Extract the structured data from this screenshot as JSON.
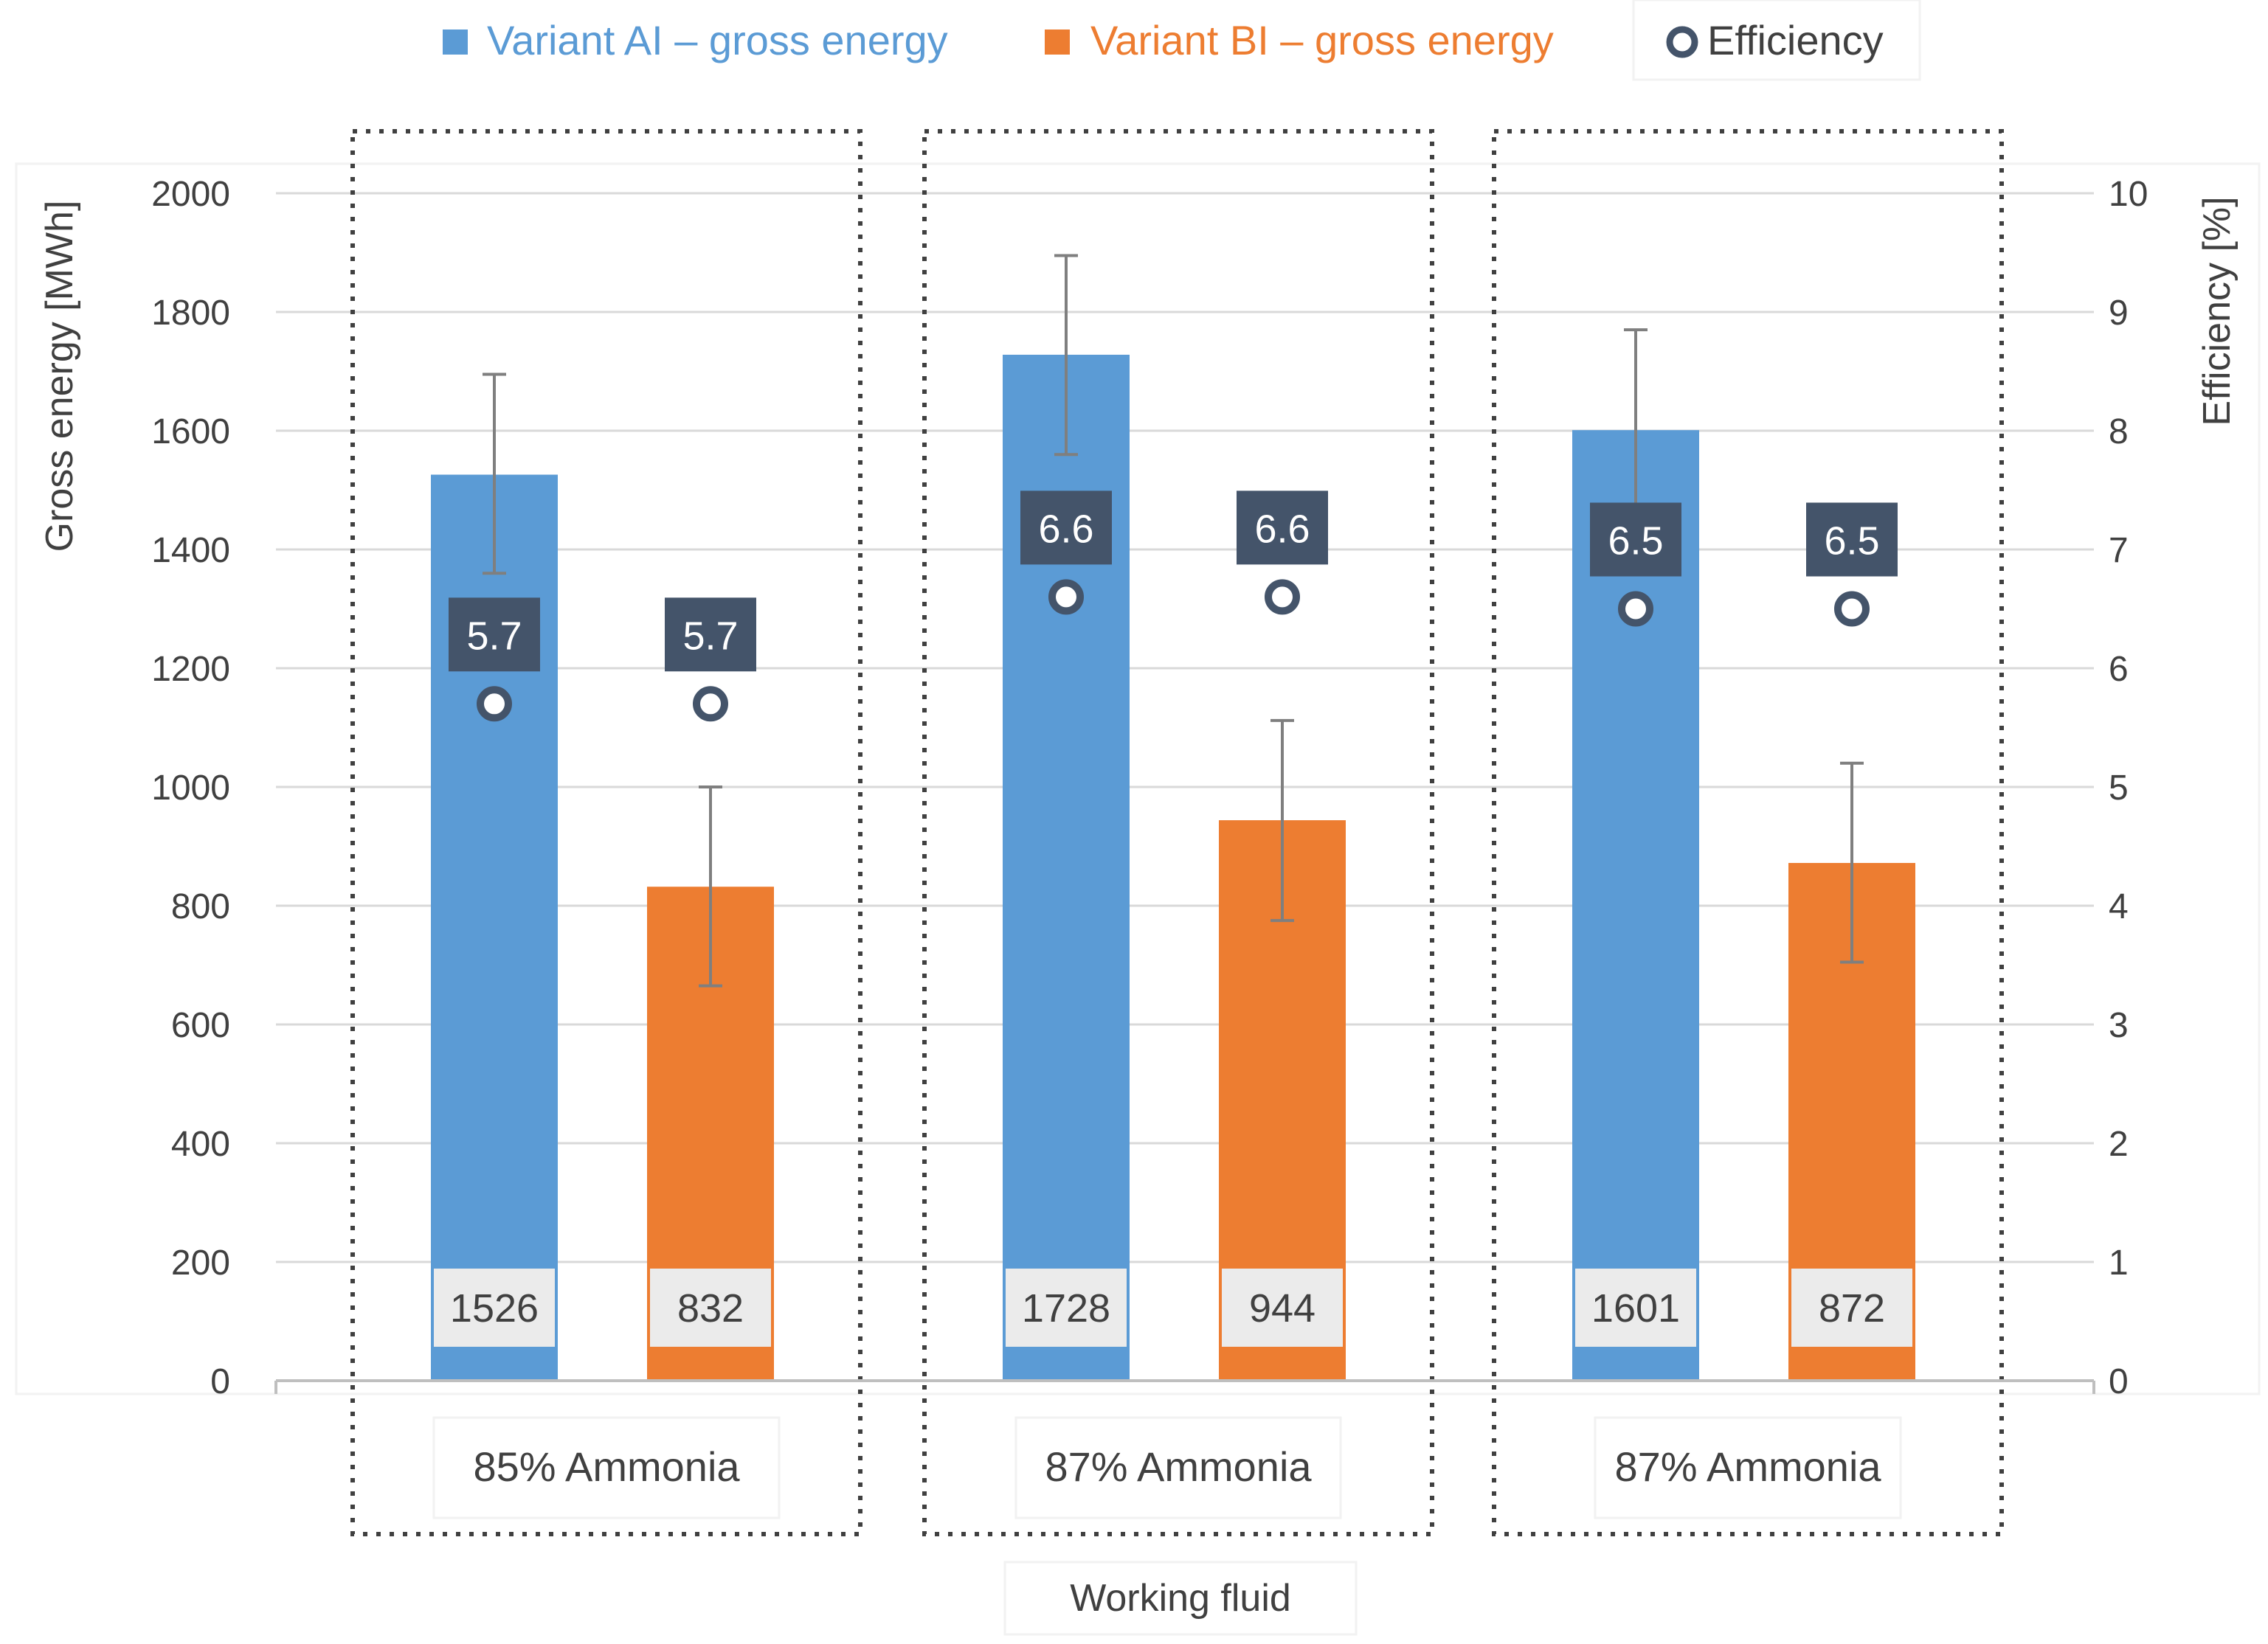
{
  "chart_data": {
    "type": "bar",
    "categories": [
      "85% Ammonia",
      "87% Ammonia",
      "87% Ammonia"
    ],
    "series": [
      {
        "name": "Variant AI – gross energy",
        "color": "#5B9BD5",
        "values": [
          1526,
          1728,
          1601
        ],
        "error_low": [
          1360,
          1560,
          1430
        ],
        "error_high": [
          1695,
          1895,
          1770
        ],
        "labels": [
          "1526",
          "1728",
          "1601"
        ]
      },
      {
        "name": "Variant BI – gross energy",
        "color": "#ED7D31",
        "values": [
          832,
          944,
          872
        ],
        "error_low": [
          665,
          775,
          705
        ],
        "error_high": [
          1000,
          1112,
          1040
        ],
        "labels": [
          "832",
          "944",
          "872"
        ]
      }
    ],
    "efficiency": {
      "name": "Efficiency",
      "color": "#44546A",
      "axis": "secondary",
      "values": [
        [
          5.7,
          5.7
        ],
        [
          6.6,
          6.6
        ],
        [
          6.5,
          6.5
        ]
      ],
      "labels": [
        [
          "5.7",
          "5.7"
        ],
        [
          "6.6",
          "6.6"
        ],
        [
          "6.5",
          "6.5"
        ]
      ]
    },
    "ylabel": "Gross energy [MWh]",
    "y2label": "Efficiency [%]",
    "xlabel": "Working fluid",
    "ylim": [
      0,
      2000
    ],
    "y2lim": [
      0,
      10
    ],
    "yticks": [
      "0",
      "200",
      "400",
      "600",
      "800",
      "1000",
      "1200",
      "1400",
      "1600",
      "1800",
      "2000"
    ],
    "y2ticks": [
      "0",
      "1",
      "2",
      "3",
      "4",
      "5",
      "6",
      "7",
      "8",
      "9",
      "10"
    ],
    "grid": true,
    "legend_position": "top"
  }
}
